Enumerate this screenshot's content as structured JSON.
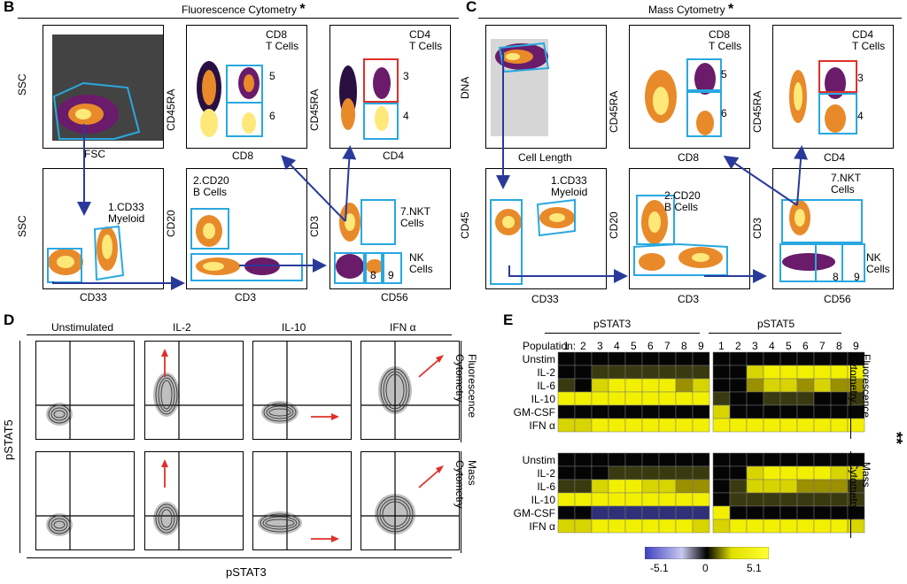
{
  "panel_labels": {
    "B": "B",
    "C": "C",
    "D": "D",
    "E": "E"
  },
  "panelB": {
    "title": "Fluorescence Cytometry",
    "star": "*",
    "axes": {
      "ssc": "SSC",
      "fsc": "FSC",
      "cd45ra": "CD45RA",
      "cd8": "CD8",
      "cd4": "CD4",
      "ssc2": "SSC",
      "cd33": "CD33",
      "cd20": "CD20",
      "cd3": "CD3",
      "cd3b": "CD3",
      "cd56": "CD56"
    },
    "gates": {
      "cd8": "CD8\nT Cells",
      "cd4": "CD4\nT Cells",
      "g5": "5",
      "g6": "6",
      "g3": "3",
      "g4": "4",
      "myeloid": "1.CD33\nMyeloid",
      "bcells": "2.CD20\nB Cells",
      "nkt": "7.NKT\nCells",
      "nk": "NK\nCells",
      "g8": "8",
      "g9": "9"
    }
  },
  "panelC": {
    "title": "Mass Cytometry",
    "star": "*",
    "axes": {
      "dna": "DNA",
      "celllength": "Cell Length",
      "cd45ra": "CD45RA",
      "cd8": "CD8",
      "cd4": "CD4",
      "cd45": "CD45",
      "cd33": "CD33",
      "cd20": "CD20",
      "cd3": "CD3",
      "cd3b": "CD3",
      "cd56": "CD56"
    },
    "gates": {
      "cd8": "CD8\nT Cells",
      "cd4": "CD4\nT Cells",
      "g5": "5",
      "g6": "6",
      "g3": "3",
      "g4": "4",
      "myeloid": "1.CD33\nMyeloid",
      "bcells": "2.CD20\nB Cells",
      "nkt": "7.NKT\nCells",
      "nk": "NK\nCells",
      "g8": "8",
      "g9": "9"
    }
  },
  "panelD": {
    "columns": [
      "Unstimulated",
      "IL-2",
      "IL-10",
      "IFN α"
    ],
    "ylabel": "pSTAT5",
    "xlabel": "pSTAT3",
    "rows": [
      "Fluorescence\nCytometry",
      "Mass\nCytometry"
    ]
  },
  "panelE": {
    "groups": [
      "pSTAT3",
      "pSTAT5"
    ],
    "population_label": "Population:",
    "populations": [
      "1",
      "2",
      "3",
      "4",
      "5",
      "6",
      "7",
      "8",
      "9"
    ],
    "row_labels": [
      "Unstim",
      "IL-2",
      "IL-6",
      "IL-10",
      "GM-CSF",
      "IFN α"
    ],
    "block_labels": [
      "Fluorescence\nCytometry",
      "Mass\nCytometry"
    ],
    "star": "**",
    "scale": {
      "min": "-5.1",
      "mid": "0",
      "max": "5.1"
    },
    "heat": {
      "fluor_pstat3": [
        [
          0,
          0,
          0,
          0,
          0,
          0,
          0,
          0,
          0
        ],
        [
          0,
          0,
          1,
          1,
          1,
          1,
          1,
          1,
          1
        ],
        [
          1,
          0,
          3,
          4,
          4,
          4,
          4,
          2,
          3
        ],
        [
          4,
          4,
          4,
          4,
          4,
          4,
          4,
          4,
          4
        ],
        [
          0,
          0,
          0,
          0,
          0,
          0,
          0,
          0,
          0
        ],
        [
          3,
          3,
          4,
          4,
          4,
          4,
          4,
          4,
          4
        ]
      ],
      "fluor_pstat5": [
        [
          0,
          0,
          0,
          0,
          0,
          0,
          0,
          0,
          0
        ],
        [
          0,
          0,
          3,
          4,
          4,
          4,
          4,
          4,
          4
        ],
        [
          0,
          0,
          2,
          3,
          3,
          2,
          3,
          2,
          2
        ],
        [
          1,
          0,
          0,
          1,
          1,
          1,
          0,
          0,
          1
        ],
        [
          3,
          0,
          0,
          0,
          0,
          0,
          0,
          0,
          0
        ],
        [
          4,
          4,
          4,
          4,
          4,
          4,
          4,
          4,
          4
        ]
      ],
      "mass_pstat3": [
        [
          0,
          0,
          0,
          0,
          0,
          0,
          0,
          0,
          0
        ],
        [
          0,
          0,
          0,
          1,
          1,
          1,
          1,
          1,
          1
        ],
        [
          1,
          1,
          3,
          4,
          4,
          3,
          3,
          2,
          2
        ],
        [
          4,
          4,
          4,
          4,
          4,
          4,
          4,
          4,
          4
        ],
        [
          0,
          0,
          -1,
          -1,
          -1,
          -1,
          -1,
          -1,
          -1
        ],
        [
          3,
          3,
          4,
          4,
          4,
          4,
          4,
          4,
          3
        ]
      ],
      "mass_pstat5": [
        [
          0,
          0,
          0,
          0,
          0,
          0,
          0,
          0,
          0
        ],
        [
          0,
          0,
          3,
          4,
          4,
          4,
          4,
          3,
          3
        ],
        [
          0,
          1,
          3,
          3,
          3,
          2,
          2,
          2,
          1
        ],
        [
          0,
          1,
          1,
          1,
          1,
          1,
          1,
          1,
          1
        ],
        [
          4,
          0,
          0,
          0,
          0,
          0,
          0,
          0,
          0
        ],
        [
          3,
          4,
          4,
          4,
          4,
          4,
          4,
          4,
          3
        ]
      ]
    }
  }
}
